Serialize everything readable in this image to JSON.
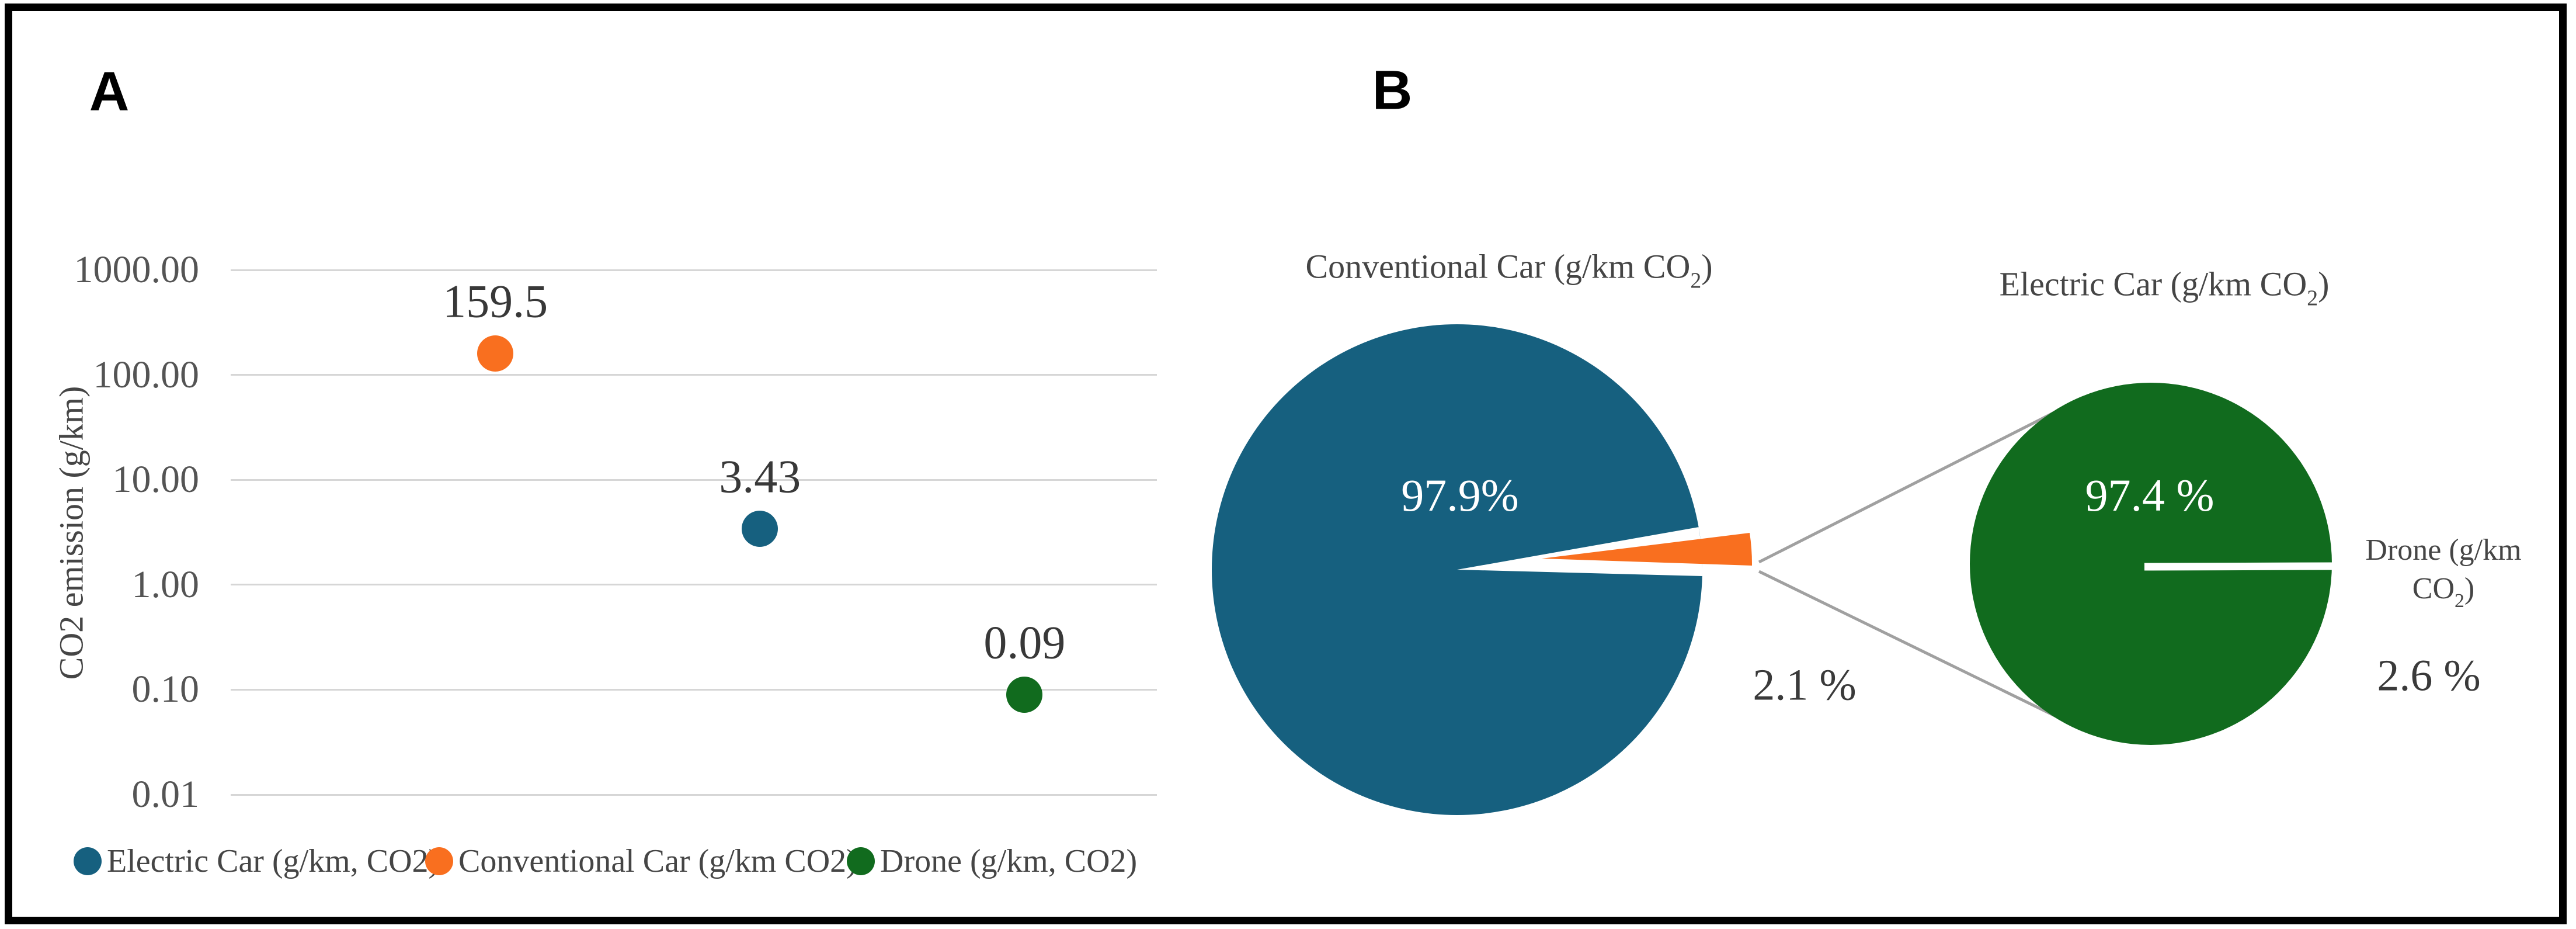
{
  "colors": {
    "blue": "#16607F",
    "orange": "#F96F1F",
    "green": "#116B1E",
    "grid": "#D6D6D6",
    "connector": "#A0A0A0",
    "white": "#FFFFFF"
  },
  "panelA": {
    "label": "A",
    "y_axis_title": "CO2 emission (g/km)",
    "y_ticks": [
      "1000.00",
      "100.00",
      "10.00",
      "1.00",
      "0.10",
      "0.01"
    ]
  },
  "panelB": {
    "label": "B",
    "pie1_title": {
      "pre": "Conventional Car (g/km CO",
      "sub": "2",
      "post": ")"
    },
    "pie2_title": {
      "pre": "Electric Car (g/km CO",
      "sub": "2",
      "post": ")"
    },
    "pie1_main_pct": "97.9%",
    "pie1_small_pct": "2.1 %",
    "pie2_main_pct": "97.4 %",
    "pie2_small_pct": "2.6 %",
    "drone_label": {
      "line1": "Drone (g/km",
      "line2_pre": "CO",
      "line2_sub": "2",
      "line2_post": ")"
    }
  },
  "legend": {
    "items": [
      {
        "label": "Electric Car (g/km, CO2)",
        "color": "#16607F"
      },
      {
        "label": "Conventional Car (g/km CO2)",
        "color": "#F96F1F"
      },
      {
        "label": "Drone (g/km, CO2)",
        "color": "#116B1E"
      }
    ]
  },
  "chart_data": [
    {
      "type": "scatter",
      "title": "",
      "xlabel": "",
      "ylabel": "CO2 emission (g/km)",
      "y_scale": "log",
      "ylim": [
        0.01,
        1000
      ],
      "y_tick_values": [
        1000,
        100,
        10,
        1,
        0.1,
        0.01
      ],
      "grid": true,
      "legend_position": "bottom",
      "points": [
        {
          "name": "Conventional Car (g/km CO2)",
          "x_index": 1,
          "value": 159.5,
          "label": "159.5",
          "color": "#F96F1F"
        },
        {
          "name": "Electric Car (g/km, CO2)",
          "x_index": 2,
          "value": 3.43,
          "label": "3.43",
          "color": "#16607F"
        },
        {
          "name": "Drone (g/km, CO2)",
          "x_index": 3,
          "value": 0.09,
          "label": "0.09",
          "color": "#116B1E"
        }
      ]
    },
    {
      "type": "pie",
      "title": "Conventional Car (g/km CO2)",
      "slices": [
        {
          "label": "97.9%",
          "value": 97.9,
          "color": "#16607F"
        },
        {
          "label": "2.1 %",
          "value": 2.1,
          "color": "#F96F1F",
          "exploded": true
        }
      ]
    },
    {
      "type": "pie",
      "title": "Electric Car (g/km CO2)",
      "slices": [
        {
          "label": "97.4 %",
          "value": 97.4,
          "color": "#116B1E"
        },
        {
          "label": "2.6 %",
          "value": 2.6,
          "color": "#FFFFFF",
          "name": "Drone (g/km CO2)"
        }
      ]
    }
  ]
}
